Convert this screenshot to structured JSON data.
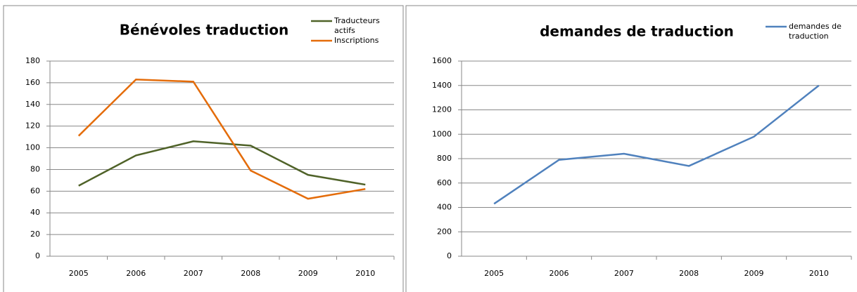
{
  "chart_data": [
    {
      "type": "line",
      "title": "Bénévoles traduction",
      "categories": [
        "2005",
        "2006",
        "2007",
        "2008",
        "2009",
        "2010"
      ],
      "series": [
        {
          "name": "Traducteurs actifs",
          "color": "#4f6228",
          "values": [
            65,
            93,
            106,
            102,
            75,
            66
          ]
        },
        {
          "name": "Inscriptions",
          "color": "#e46c0a",
          "values": [
            111,
            163,
            161,
            79,
            53,
            62
          ]
        }
      ],
      "ylim": [
        0,
        180
      ],
      "yticks": [
        0,
        20,
        40,
        60,
        80,
        100,
        120,
        140,
        160,
        180
      ],
      "grid": true
    },
    {
      "type": "line",
      "title": "demandes de traduction",
      "categories": [
        "2005",
        "2006",
        "2007",
        "2008",
        "2009",
        "2010"
      ],
      "series": [
        {
          "name": "demandes de traduction",
          "color": "#4f81bd",
          "values": [
            430,
            790,
            840,
            740,
            980,
            1400
          ]
        }
      ],
      "ylim": [
        0,
        1600
      ],
      "yticks": [
        0,
        200,
        400,
        600,
        800,
        1000,
        1200,
        1400,
        1600
      ],
      "grid": true
    }
  ]
}
